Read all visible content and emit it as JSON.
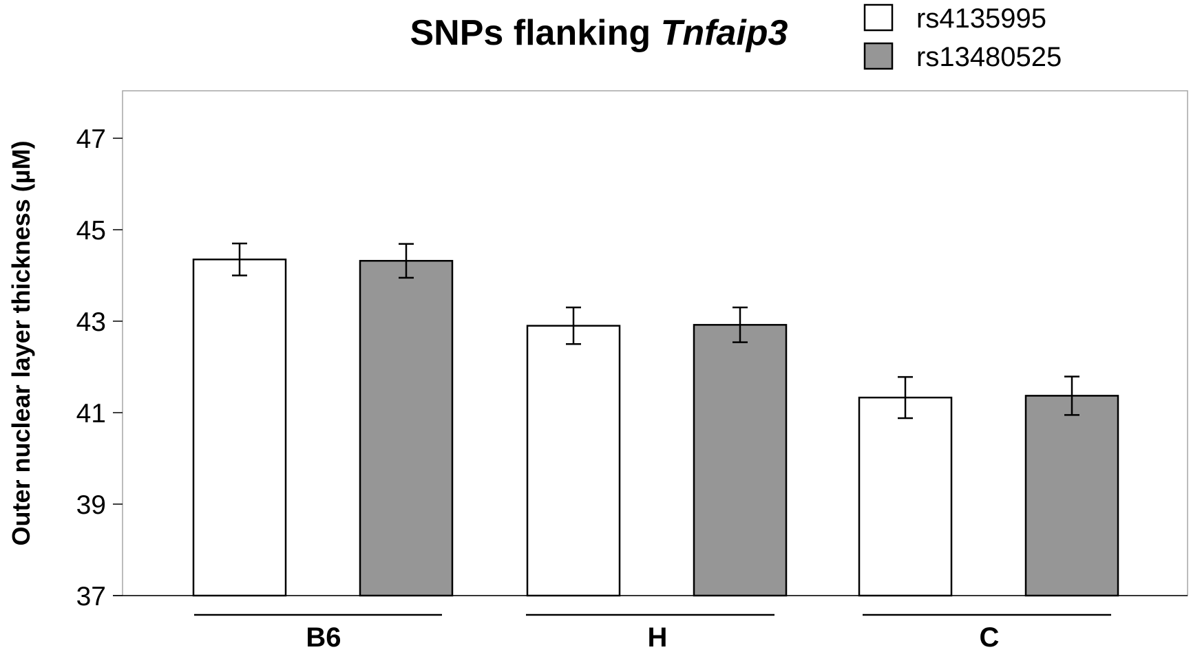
{
  "chart_data": {
    "type": "bar",
    "title": "SNPs flanking ",
    "title_italic": "Tnfaip3",
    "xlabel": "",
    "ylabel": "Outer nuclear layer thickness (µM)",
    "ylim": [
      37,
      48
    ],
    "yticks": [
      37,
      39,
      41,
      43,
      45,
      47
    ],
    "categories": [
      "B6",
      "H",
      "C"
    ],
    "legend_position": "top-right",
    "grid": false,
    "series": [
      {
        "name": "rs4135995",
        "color": "#ffffff",
        "values": [
          44.35,
          42.9,
          41.33
        ],
        "errors": [
          0.35,
          0.4,
          0.45
        ]
      },
      {
        "name": "rs13480525",
        "color": "#969696",
        "values": [
          44.32,
          42.92,
          41.37
        ],
        "errors": [
          0.37,
          0.38,
          0.42
        ]
      }
    ]
  }
}
